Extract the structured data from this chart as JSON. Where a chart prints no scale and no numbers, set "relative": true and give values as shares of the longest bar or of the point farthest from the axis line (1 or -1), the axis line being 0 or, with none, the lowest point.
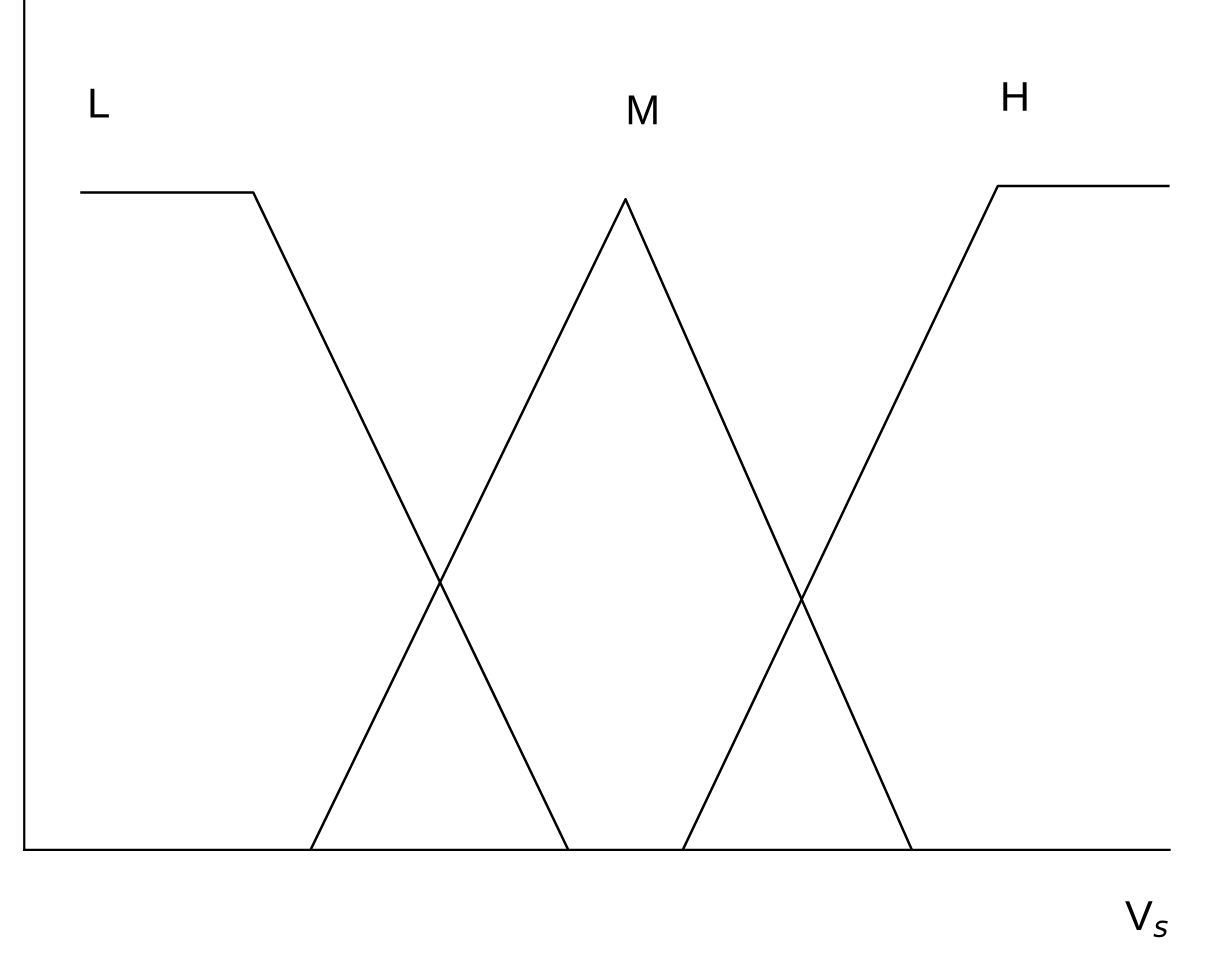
{
  "chart_data": {
    "type": "line",
    "relative": true,
    "xlabel": "V$_{s}$",
    "tick_labels": false,
    "legend": false,
    "marker": "none",
    "line_style": "solid",
    "categories": [
      null,
      null,
      null,
      null,
      null,
      null,
      null,
      null,
      null,
      null,
      null,
      null,
      null,
      null,
      null,
      null,
      null,
      null,
      null,
      null,
      null,
      null,
      null,
      null,
      null,
      null,
      null,
      null,
      null,
      null,
      null,
      null,
      null,
      null,
      null,
      null,
      null,
      null,
      null,
      null,
      null
    ],
    "series": [
      {
        "name": "L",
        "color": "#000000",
        "values": [
          null,
          null,
          0.99,
          null,
          null,
          null,
          null,
          null,
          0.99,
          null,
          null,
          null,
          null,
          null,
          null,
          null,
          null,
          null,
          null,
          0,
          null,
          null,
          null,
          null,
          null,
          null,
          null,
          null,
          null,
          null,
          null,
          null,
          null,
          null,
          null,
          null,
          null,
          null,
          null,
          null,
          null
        ]
      },
      {
        "name": "M",
        "color": "#000000",
        "values": [
          null,
          null,
          null,
          null,
          null,
          null,
          null,
          null,
          null,
          null,
          0,
          null,
          null,
          null,
          null,
          null,
          null,
          null,
          null,
          null,
          null,
          0.98,
          null,
          null,
          null,
          null,
          null,
          null,
          null,
          null,
          null,
          0,
          null,
          null,
          null,
          null,
          null,
          null,
          null,
          null,
          null
        ]
      },
      {
        "name": "H",
        "color": "#000000",
        "values": [
          null,
          null,
          null,
          null,
          null,
          null,
          null,
          null,
          null,
          null,
          null,
          null,
          null,
          null,
          null,
          null,
          null,
          null,
          null,
          null,
          null,
          null,
          null,
          0,
          null,
          null,
          null,
          null,
          null,
          null,
          null,
          null,
          null,
          null,
          1,
          null,
          null,
          null,
          null,
          null,
          1
        ]
      }
    ]
  }
}
